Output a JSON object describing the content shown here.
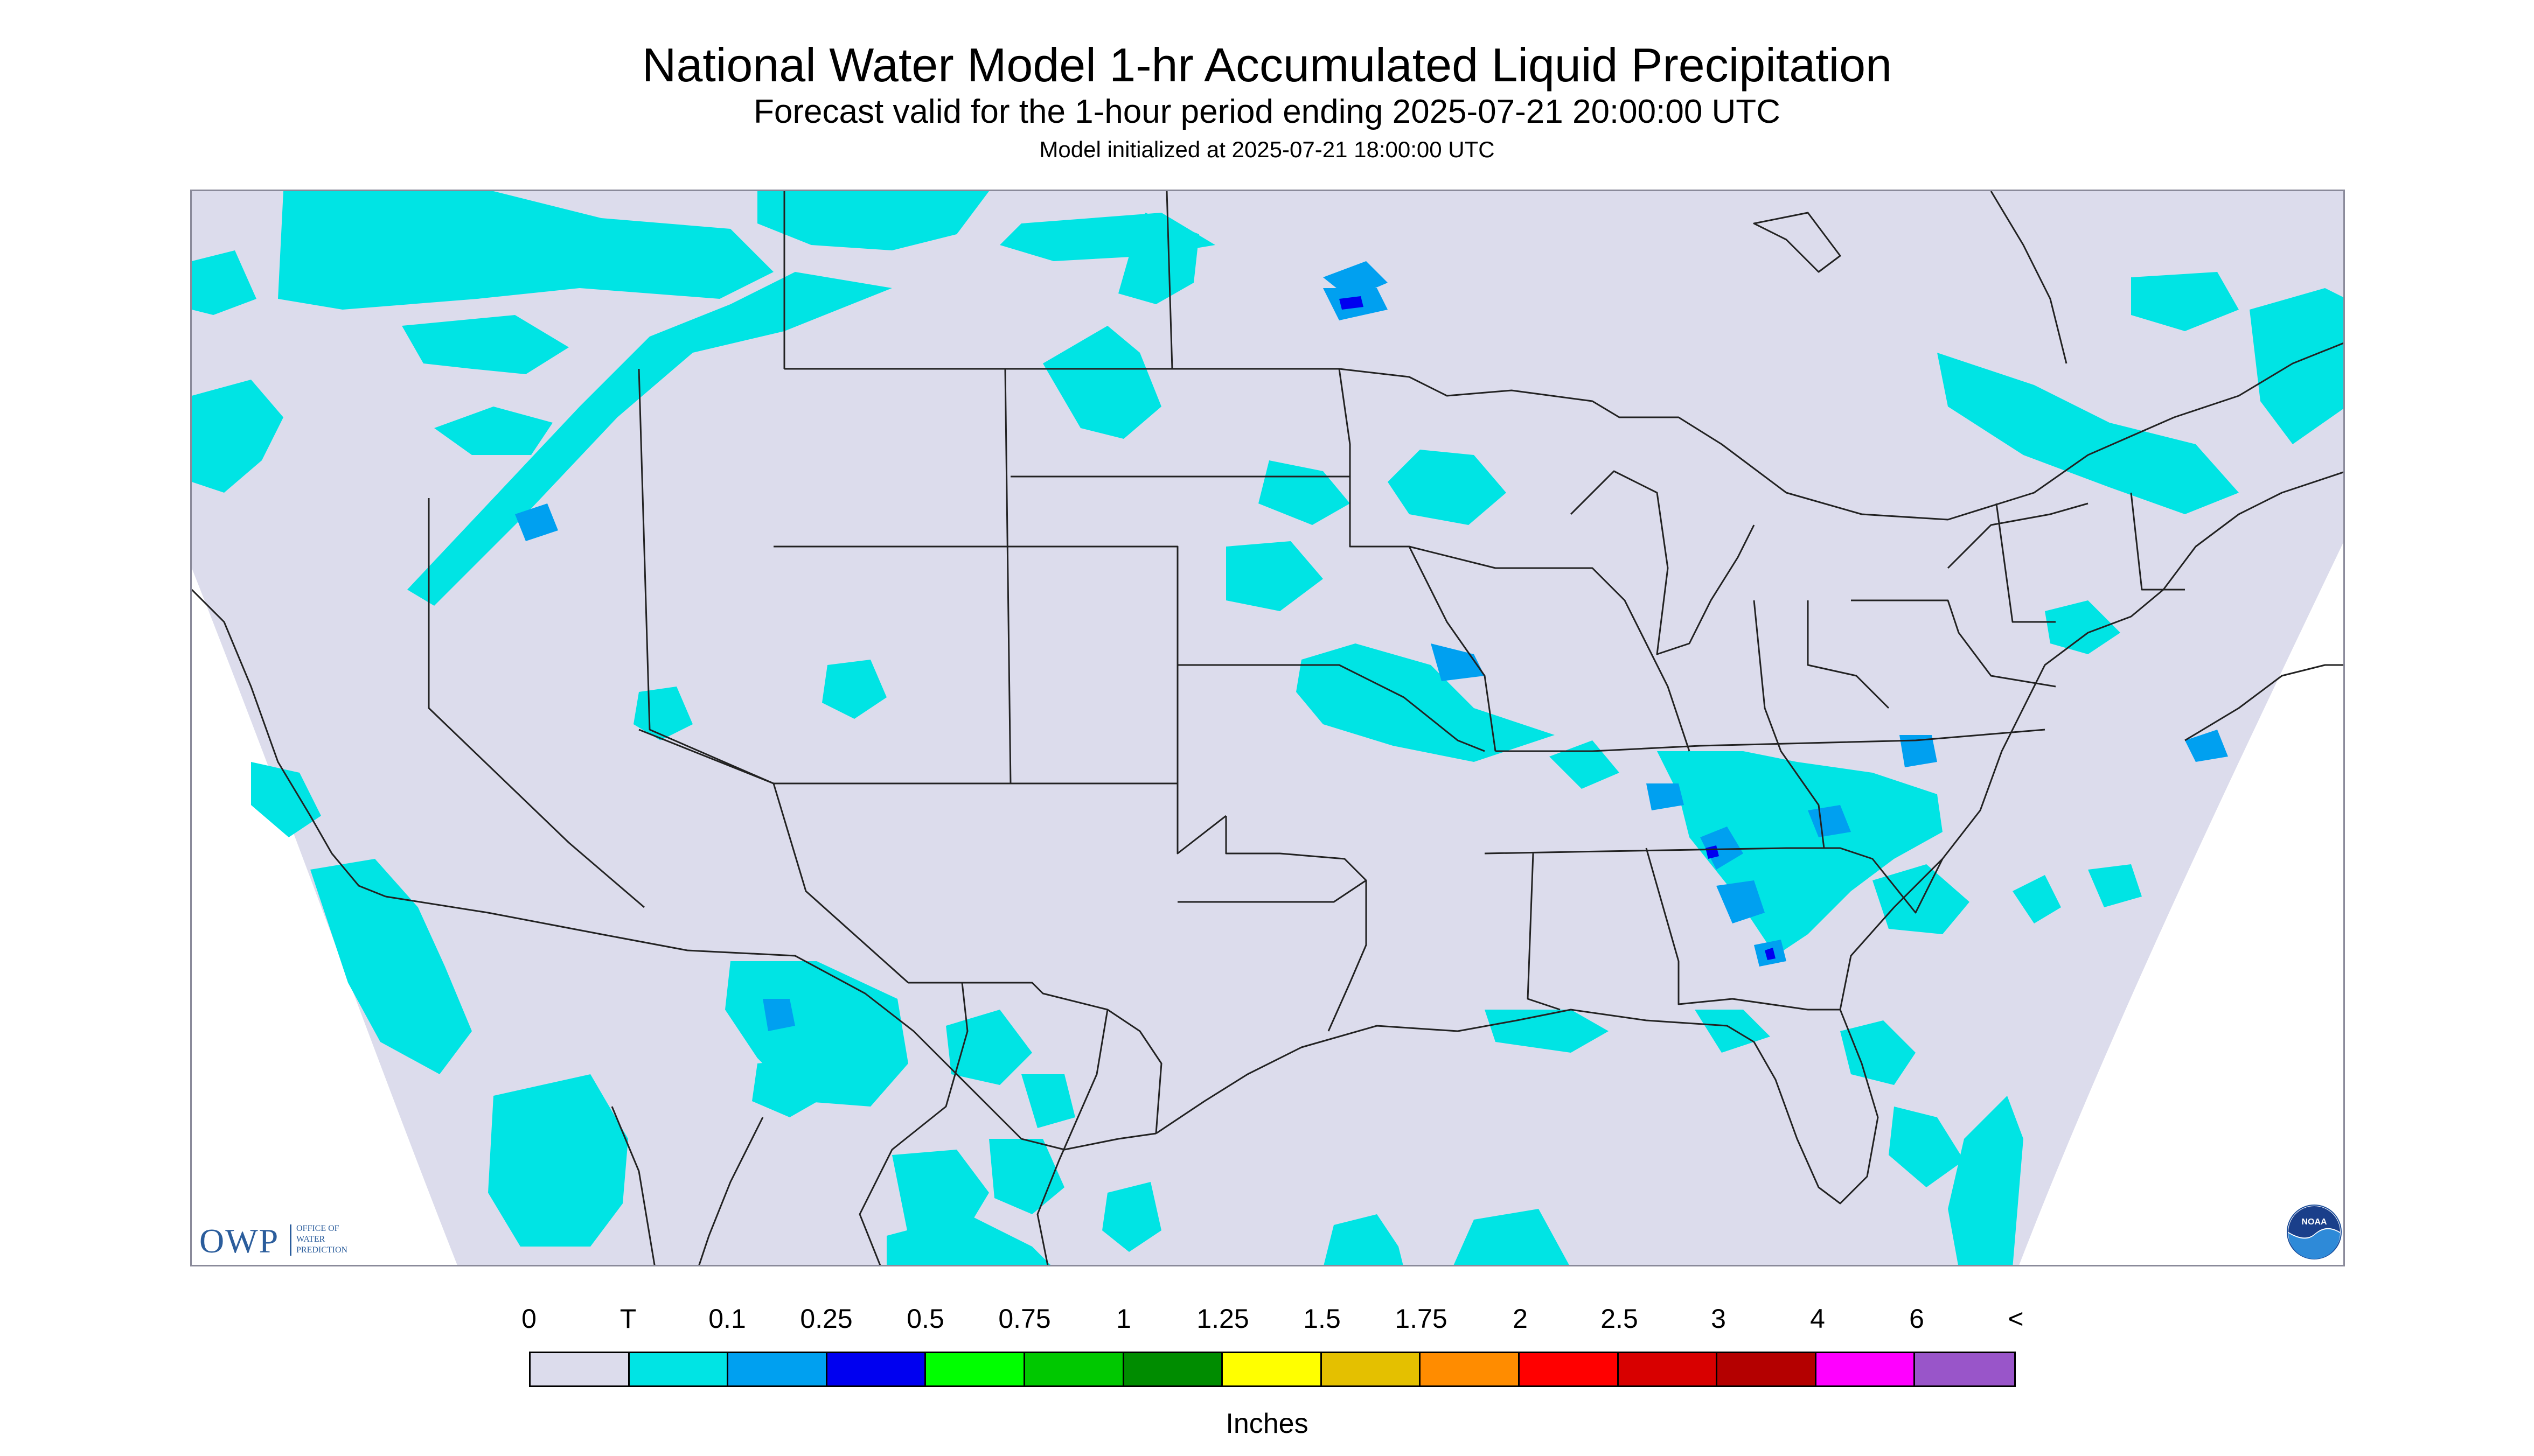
{
  "title": "National Water Model 1-hr Accumulated Liquid Precipitation",
  "subtitle": "Forecast valid for the 1-hour period ending 2025-07-21 20:00:00 UTC",
  "init_text": "Model initialized at 2025-07-21 18:00:00 UTC",
  "colors": {
    "domain_background": "#dcdcec",
    "outside_domain": "#ffffff",
    "trace": "#00e4e4",
    "light_blue": "#00a0f0",
    "blue": "#0000f0",
    "border_lines": "#222222"
  },
  "logos": {
    "owp": {
      "letters": "OWP",
      "text": "OFFICE OF WATER PREDICTION"
    },
    "noaa": {
      "text": "NOAA"
    }
  },
  "legend": {
    "labels": [
      "0",
      "T",
      "0.1",
      "0.25",
      "0.5",
      "0.75",
      "1",
      "1.25",
      "1.5",
      "1.75",
      "2",
      "2.5",
      "3",
      "4",
      "6",
      "<"
    ],
    "colors": [
      "#dcdcec",
      "#00e4e4",
      "#00a0f0",
      "#0000f0",
      "#00ff00",
      "#00c800",
      "#008c00",
      "#ffff00",
      "#e4c000",
      "#ff8c00",
      "#ff0000",
      "#d80000",
      "#b40000",
      "#ff00ff",
      "#9955c9"
    ],
    "units": "Inches"
  }
}
